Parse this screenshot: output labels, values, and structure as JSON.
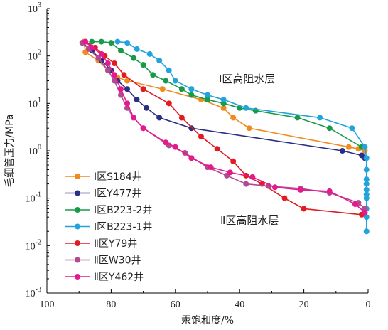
{
  "chart_data": {
    "type": "line",
    "xlabel": "汞饱和度/%",
    "ylabel": "毛细管压力/MPa",
    "xlim": [
      100,
      0
    ],
    "ylim": [
      0.001,
      1000
    ],
    "yscale": "log",
    "x_ticks": [
      "100",
      "80",
      "60",
      "40",
      "20",
      "0"
    ],
    "y_ticks": [
      {
        "base": "10",
        "exp": "-3"
      },
      {
        "base": "10",
        "exp": "-2"
      },
      {
        "base": "10",
        "exp": "-1"
      },
      {
        "base": "10",
        "exp": "0"
      },
      {
        "base": "10",
        "exp": "1"
      },
      {
        "base": "10",
        "exp": "2"
      },
      {
        "base": "10",
        "exp": "3"
      }
    ],
    "annotations": [
      "Ⅰ区高阻水层",
      "Ⅱ区高阻水层"
    ],
    "legend_position": "left",
    "series": [
      {
        "name": "Ⅰ区S184井",
        "color": "#f08c1e",
        "points": [
          [
            88.5,
            200
          ],
          [
            88,
            120
          ],
          [
            84,
            80
          ],
          [
            81,
            50
          ],
          [
            78,
            35
          ],
          [
            75,
            30
          ],
          [
            64,
            20
          ],
          [
            52,
            12
          ],
          [
            45,
            8
          ],
          [
            42,
            5
          ],
          [
            37,
            3
          ],
          [
            6,
            1.2
          ],
          [
            3,
            1.1
          ],
          [
            1,
            1.0
          ]
        ]
      },
      {
        "name": "Ⅰ区Y477井",
        "color": "#2a2f86",
        "points": [
          [
            89,
            190
          ],
          [
            86,
            130
          ],
          [
            83,
            80
          ],
          [
            80,
            50
          ],
          [
            78,
            30
          ],
          [
            75,
            20
          ],
          [
            72,
            12
          ],
          [
            69,
            8
          ],
          [
            65,
            5
          ],
          [
            55,
            3
          ],
          [
            8,
            1.0
          ],
          [
            2,
            0.8
          ],
          [
            1,
            0.7
          ]
        ]
      },
      {
        "name": "Ⅰ区B223-2井",
        "color": "#189a4b",
        "points": [
          [
            86,
            200
          ],
          [
            83,
            200
          ],
          [
            80,
            190
          ],
          [
            77,
            130
          ],
          [
            73,
            90
          ],
          [
            70,
            65
          ],
          [
            67,
            40
          ],
          [
            63,
            30
          ],
          [
            58,
            20
          ],
          [
            55,
            15
          ],
          [
            50,
            12
          ],
          [
            45,
            10
          ],
          [
            40,
            8
          ],
          [
            35,
            7
          ],
          [
            22,
            5
          ],
          [
            12,
            3
          ],
          [
            2,
            1.2
          ]
        ]
      },
      {
        "name": "Ⅰ区B223-1井",
        "color": "#22a3dc",
        "points": [
          [
            78,
            200
          ],
          [
            75,
            190
          ],
          [
            72,
            140
          ],
          [
            68,
            110
          ],
          [
            65,
            80
          ],
          [
            62,
            50
          ],
          [
            60,
            30
          ],
          [
            55,
            20
          ],
          [
            50,
            15
          ],
          [
            45,
            12
          ],
          [
            38,
            8
          ],
          [
            15,
            5
          ],
          [
            5,
            3
          ],
          [
            1,
            1.2
          ],
          [
            0.5,
            0.7
          ],
          [
            0.5,
            0.4
          ],
          [
            0.5,
            0.25
          ],
          [
            0.5,
            0.2
          ],
          [
            0.5,
            0.15
          ],
          [
            0.5,
            0.12
          ],
          [
            0.5,
            0.1
          ],
          [
            0.5,
            0.06
          ],
          [
            0.5,
            0.04
          ],
          [
            0.5,
            0.02
          ]
        ]
      },
      {
        "name": "Ⅱ区Y79井",
        "color": "#e21b23",
        "points": [
          [
            88,
            200
          ],
          [
            85,
            150
          ],
          [
            82,
            100
          ],
          [
            79,
            70
          ],
          [
            76,
            40
          ],
          [
            70,
            20
          ],
          [
            62,
            10
          ],
          [
            58,
            5
          ],
          [
            52,
            2
          ],
          [
            47,
            1.1
          ],
          [
            42,
            0.6
          ],
          [
            38,
            0.3
          ],
          [
            33,
            0.2
          ],
          [
            26,
            0.1
          ],
          [
            20,
            0.06
          ],
          [
            2,
            0.045
          ]
        ]
      },
      {
        "name": "Ⅱ区W30井",
        "color": "#b24a92",
        "points": [
          [
            89,
            190
          ],
          [
            87,
            140
          ],
          [
            84,
            90
          ],
          [
            81,
            50
          ],
          [
            79,
            30
          ],
          [
            77,
            15
          ],
          [
            75,
            8
          ],
          [
            73,
            5
          ],
          [
            70,
            3
          ],
          [
            62,
            1.3
          ],
          [
            57,
            0.9
          ],
          [
            50,
            0.45
          ],
          [
            44,
            0.3
          ],
          [
            38,
            0.2
          ],
          [
            31,
            0.18
          ],
          [
            21,
            0.16
          ],
          [
            12,
            0.13
          ],
          [
            3,
            0.08
          ],
          [
            1,
            0.06
          ]
        ]
      },
      {
        "name": "Ⅱ区Y462井",
        "color": "#e6198c",
        "points": [
          [
            88,
            200
          ],
          [
            86,
            150
          ],
          [
            83,
            110
          ],
          [
            81,
            70
          ],
          [
            79,
            40
          ],
          [
            77,
            20
          ],
          [
            75,
            10
          ],
          [
            73,
            5
          ],
          [
            70,
            3
          ],
          [
            63,
            1.5
          ],
          [
            60,
            1.2
          ],
          [
            55,
            0.7
          ],
          [
            49,
            0.45
          ],
          [
            43,
            0.35
          ],
          [
            36,
            0.28
          ],
          [
            29,
            0.17
          ],
          [
            21,
            0.15
          ],
          [
            12,
            0.14
          ],
          [
            4,
            0.075
          ],
          [
            1,
            0.05
          ]
        ]
      }
    ]
  }
}
